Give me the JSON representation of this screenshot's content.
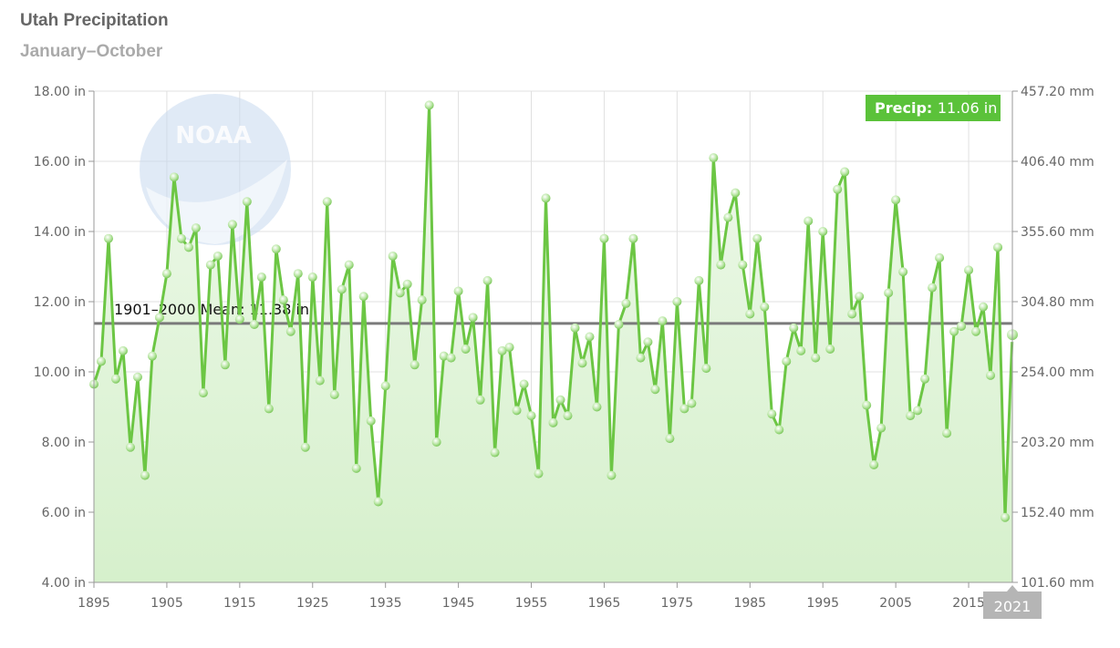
{
  "title": "Utah Precipitation",
  "subtitle": "January–October",
  "colors": {
    "line": "#6cc644",
    "fill": "#dff3d6",
    "mean": "#7a7a7a",
    "grid": "#e0e0e0",
    "tooltip": "#5bc23a",
    "badge": "#b5b5b5",
    "logo": "#c7d8ee"
  },
  "logo_text": "NOAA",
  "chart_data": {
    "type": "area",
    "title": "Utah Precipitation",
    "subtitle": "January–October",
    "x": [
      1895,
      1896,
      1897,
      1898,
      1899,
      1900,
      1901,
      1902,
      1903,
      1904,
      1905,
      1906,
      1907,
      1908,
      1909,
      1910,
      1911,
      1912,
      1913,
      1914,
      1915,
      1916,
      1917,
      1918,
      1919,
      1920,
      1921,
      1922,
      1923,
      1924,
      1925,
      1926,
      1927,
      1928,
      1929,
      1930,
      1931,
      1932,
      1933,
      1934,
      1935,
      1936,
      1937,
      1938,
      1939,
      1940,
      1941,
      1942,
      1943,
      1944,
      1945,
      1946,
      1947,
      1948,
      1949,
      1950,
      1951,
      1952,
      1953,
      1954,
      1955,
      1956,
      1957,
      1958,
      1959,
      1960,
      1961,
      1962,
      1963,
      1964,
      1965,
      1966,
      1967,
      1968,
      1969,
      1970,
      1971,
      1972,
      1973,
      1974,
      1975,
      1976,
      1977,
      1978,
      1979,
      1980,
      1981,
      1982,
      1983,
      1984,
      1985,
      1986,
      1987,
      1988,
      1989,
      1990,
      1991,
      1992,
      1993,
      1994,
      1995,
      1996,
      1997,
      1998,
      1999,
      2000,
      2001,
      2002,
      2003,
      2004,
      2005,
      2006,
      2007,
      2008,
      2009,
      2010,
      2011,
      2012,
      2013,
      2014,
      2015,
      2016,
      2017,
      2018,
      2019,
      2020,
      2021
    ],
    "values": [
      9.65,
      10.3,
      13.8,
      9.8,
      10.6,
      7.85,
      9.85,
      7.05,
      10.45,
      11.55,
      12.8,
      15.55,
      13.8,
      13.55,
      14.1,
      9.4,
      13.05,
      13.3,
      10.2,
      14.2,
      11.5,
      14.85,
      11.35,
      12.7,
      8.95,
      13.5,
      12.05,
      11.15,
      12.8,
      7.85,
      12.7,
      9.75,
      14.85,
      9.35,
      12.35,
      13.05,
      7.25,
      12.15,
      8.6,
      6.3,
      9.6,
      13.3,
      12.25,
      12.5,
      10.2,
      12.05,
      17.6,
      8.0,
      10.45,
      10.4,
      12.3,
      10.65,
      11.55,
      9.2,
      12.6,
      7.7,
      10.6,
      10.7,
      8.9,
      9.65,
      8.75,
      7.1,
      14.95,
      8.55,
      9.2,
      8.75,
      11.25,
      10.25,
      11.0,
      9.0,
      13.8,
      7.05,
      11.35,
      11.95,
      13.8,
      10.4,
      10.85,
      9.5,
      11.45,
      8.1,
      12.0,
      8.95,
      9.1,
      12.6,
      10.1,
      16.1,
      13.05,
      14.4,
      15.1,
      13.05,
      11.65,
      13.8,
      11.85,
      8.8,
      8.35,
      10.3,
      11.25,
      10.6,
      14.3,
      10.4,
      14.0,
      10.65,
      15.2,
      15.7,
      11.65,
      12.15,
      9.05,
      7.35,
      8.4,
      12.25,
      14.9,
      12.85,
      8.75,
      8.9,
      9.8,
      12.4,
      13.25,
      8.25,
      11.15,
      11.3,
      12.9,
      11.15,
      11.85,
      9.9,
      13.55,
      5.85,
      11.06
    ],
    "xlabel": "",
    "ylabel": "",
    "xlim": [
      1895,
      2021
    ],
    "ylim": [
      4,
      18
    ],
    "y_ticks": [
      "4.00 in",
      "6.00 in",
      "8.00 in",
      "10.00 in",
      "12.00 in",
      "14.00 in",
      "16.00 in",
      "18.00 in"
    ],
    "y_right_ticks": [
      "101.60 mm",
      "152.40 mm",
      "203.20 mm",
      "254.00 mm",
      "304.80 mm",
      "355.60 mm",
      "406.40 mm",
      "457.20 mm"
    ],
    "x_ticks": [
      1895,
      1905,
      1915,
      1925,
      1935,
      1945,
      1955,
      1965,
      1975,
      1985,
      1995,
      2005,
      2015
    ],
    "x_tick_labels": [
      "1895",
      "1905",
      "1915",
      "1925",
      "1935",
      "1945",
      "1955",
      "1965",
      "1975",
      "1985",
      "1995",
      "2005",
      "2015"
    ],
    "mean": 11.38,
    "mean_label": "1901–2000 Mean: 11.38 in",
    "tooltip": {
      "label": "Precip:",
      "value": "11.06 in"
    },
    "highlight_year_label": "2021",
    "grid": true,
    "legend": "none"
  }
}
